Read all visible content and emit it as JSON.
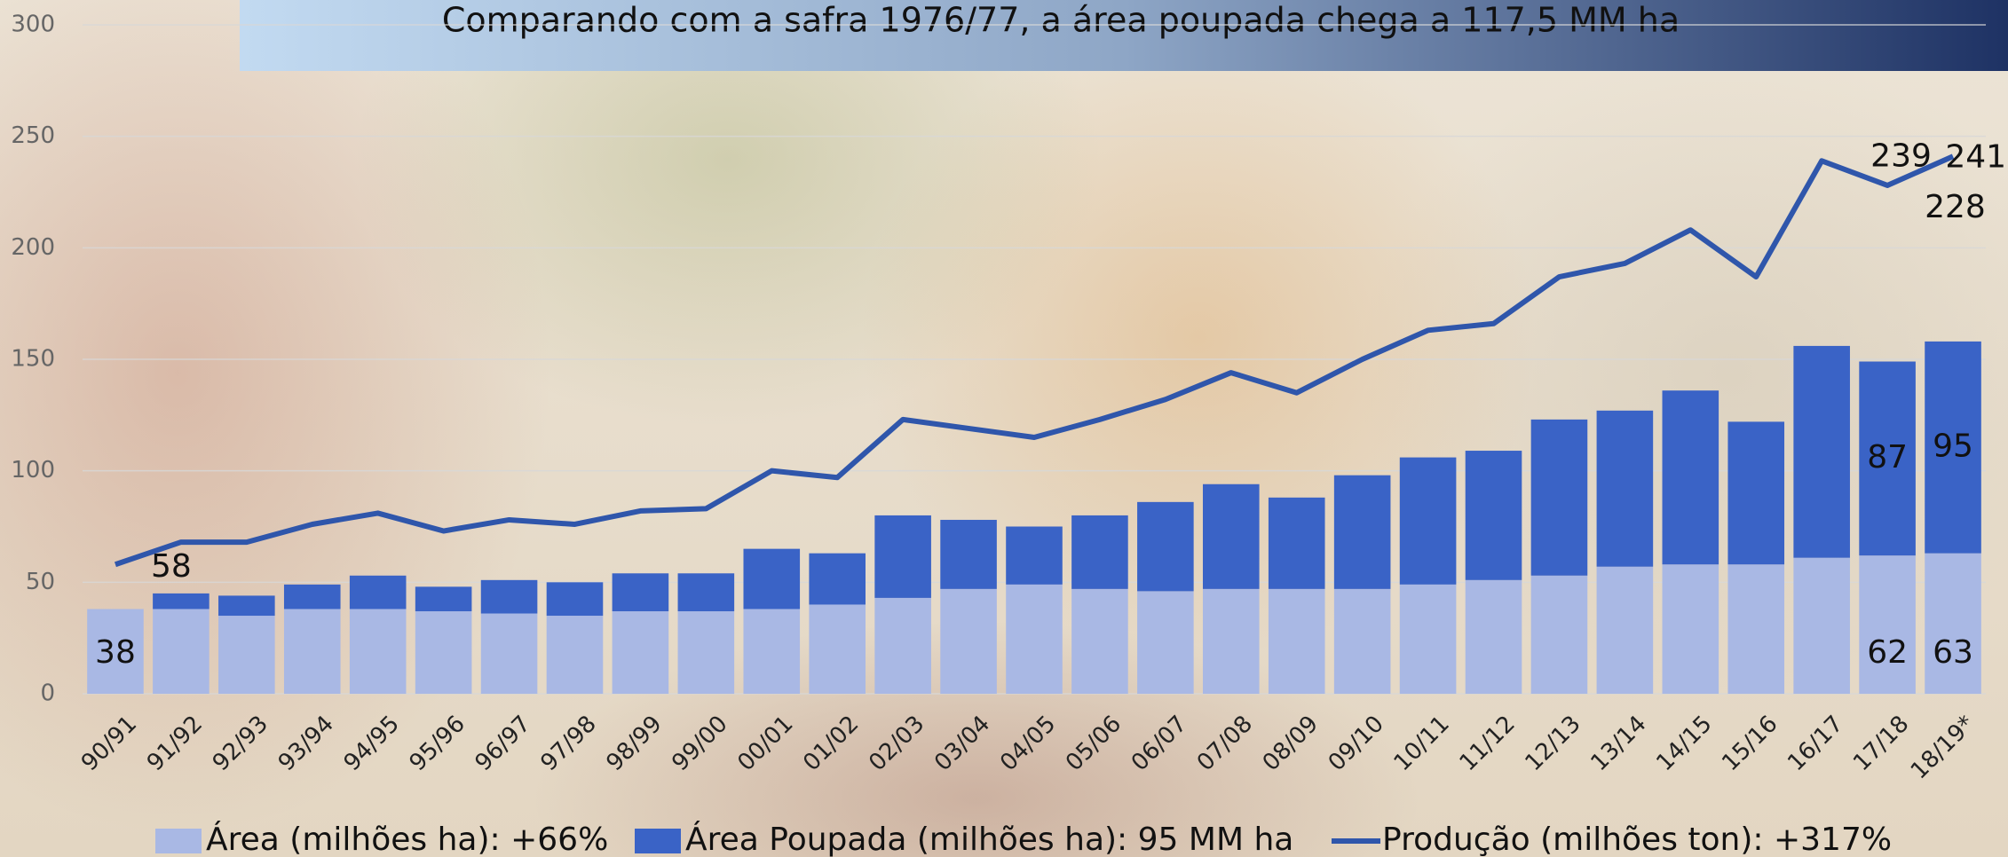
{
  "chart_data": {
    "type": "bar",
    "title": "Comparando com a safra 1976/77, a área poupada chega a 117,5 MM ha",
    "categories": [
      "90/91",
      "91/92",
      "92/93",
      "93/94",
      "94/95",
      "95/96",
      "96/97",
      "97/98",
      "98/99",
      "99/00",
      "00/01",
      "01/02",
      "02/03",
      "03/04",
      "04/05",
      "05/06",
      "06/07",
      "07/08",
      "08/09",
      "09/10",
      "10/11",
      "11/12",
      "12/13",
      "13/14",
      "14/15",
      "15/16",
      "16/17",
      "17/18",
      "18/19*"
    ],
    "ylim": [
      0,
      300
    ],
    "yticks": [
      0,
      50,
      100,
      150,
      200,
      250,
      300
    ],
    "grid": true,
    "stacked": true,
    "legend": "bottom",
    "series": [
      {
        "name": "Área (milhões ha): +66%",
        "color": "#a9b8e4",
        "type": "bar",
        "values": [
          38,
          38,
          35,
          38,
          38,
          37,
          36,
          35,
          37,
          37,
          38,
          40,
          43,
          47,
          49,
          47,
          46,
          47,
          47,
          47,
          49,
          51,
          53,
          57,
          58,
          58,
          61,
          62,
          63
        ],
        "value_labels": [
          "38",
          null,
          null,
          null,
          null,
          null,
          null,
          null,
          null,
          null,
          null,
          null,
          null,
          null,
          null,
          null,
          null,
          null,
          null,
          null,
          null,
          null,
          null,
          null,
          null,
          null,
          null,
          "62",
          "63"
        ]
      },
      {
        "name": "Área Poupada (milhões ha): 95 MM ha",
        "color": "#3a63c6",
        "type": "bar",
        "values": [
          0,
          7,
          9,
          11,
          15,
          11,
          15,
          15,
          17,
          17,
          27,
          23,
          37,
          31,
          26,
          33,
          40,
          47,
          41,
          51,
          57,
          58,
          70,
          70,
          78,
          64,
          95,
          87,
          95
        ],
        "value_labels": [
          null,
          null,
          null,
          null,
          null,
          null,
          null,
          null,
          null,
          null,
          null,
          null,
          null,
          null,
          null,
          null,
          null,
          null,
          null,
          null,
          null,
          null,
          null,
          null,
          null,
          null,
          null,
          "87",
          "95"
        ]
      },
      {
        "name": "Produção (milhões ton): +317%",
        "color": "#2f56ab",
        "type": "line",
        "values": [
          58,
          68,
          68,
          76,
          81,
          73,
          78,
          76,
          82,
          83,
          100,
          97,
          123,
          119,
          115,
          123,
          132,
          144,
          135,
          150,
          163,
          166,
          187,
          193,
          208,
          187,
          239,
          228,
          241
        ],
        "value_labels": [
          "58",
          null,
          null,
          null,
          null,
          null,
          null,
          null,
          null,
          null,
          null,
          null,
          null,
          null,
          null,
          null,
          null,
          null,
          null,
          null,
          null,
          null,
          null,
          null,
          null,
          null,
          "239",
          "228",
          "241"
        ]
      }
    ]
  }
}
